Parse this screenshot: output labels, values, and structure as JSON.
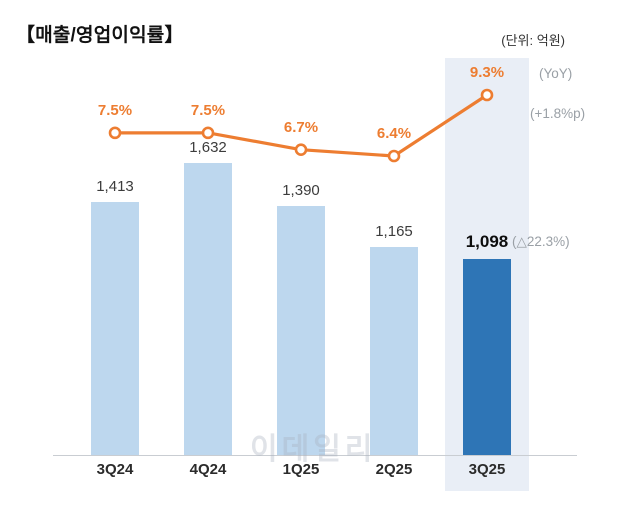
{
  "header": {
    "title": "【매출/영업이익률】",
    "unit_label": "(단위: 억원)"
  },
  "annotations": {
    "yoy_label": "(YoY)",
    "yoy_change": "(+1.8%p)",
    "qoq_change": "(△22.3%)"
  },
  "watermark": "이데일리",
  "chart_data": {
    "type": "bar",
    "title": "매출/영업이익률",
    "categories": [
      "3Q24",
      "4Q24",
      "1Q25",
      "2Q25",
      "3Q25"
    ],
    "series": [
      {
        "name": "매출(억원)",
        "type": "bar",
        "values": [
          1413,
          1632,
          1390,
          1165,
          1098
        ],
        "labels": [
          "1,413",
          "1,632",
          "1,390",
          "1,165",
          "1,098"
        ]
      },
      {
        "name": "영업이익률(%)",
        "type": "line",
        "values": [
          7.5,
          7.5,
          6.7,
          6.4,
          9.3
        ],
        "labels": [
          "7.5%",
          "7.5%",
          "6.7%",
          "6.4%",
          "9.3%"
        ]
      }
    ],
    "highlight_category": "3Q25",
    "legend": "none",
    "grid": "off",
    "ylim_bar": [
      0,
      1632
    ],
    "colors": {
      "bar": "#bdd7ee",
      "bar_highlight": "#2e75b6",
      "line": "#ed7d31",
      "highlight_band": "#e9eef6",
      "axis": "#c9cdd2",
      "value_label": "#3c3c3c",
      "value_label_highlight": "#0d0d0d",
      "muted": "#9aa0a6"
    }
  }
}
